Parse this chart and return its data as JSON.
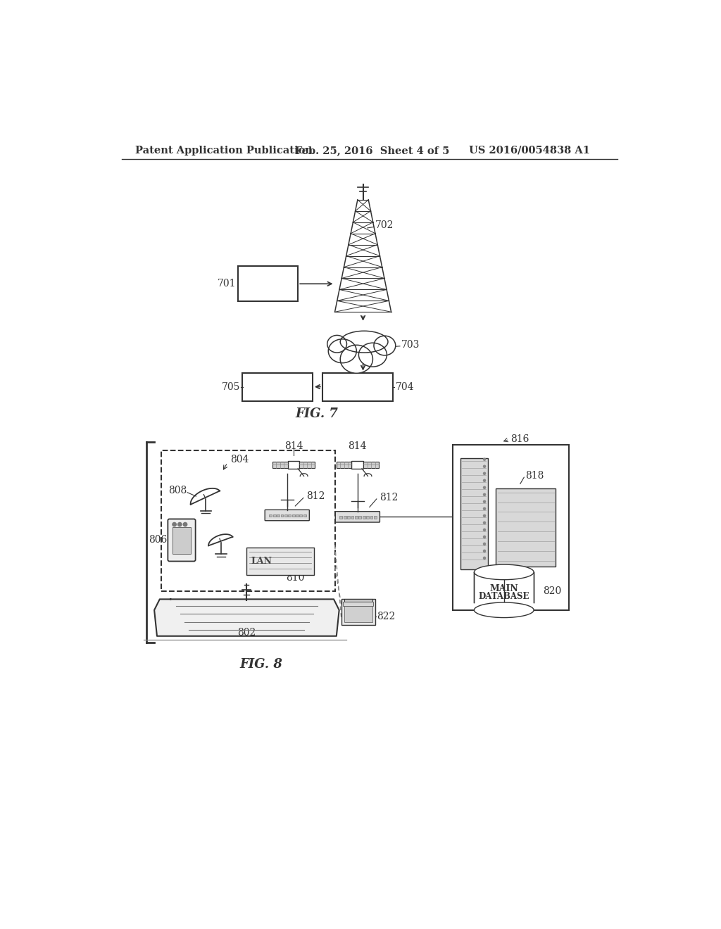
{
  "bg_color": "#ffffff",
  "header_left": "Patent Application Publication",
  "header_center": "Feb. 25, 2016  Sheet 4 of 5",
  "header_right": "US 2016/0054838 A1",
  "fig7_label": "FIG. 7",
  "fig8_label": "FIG. 8",
  "label_color": "#1a1a1a",
  "line_color": "#333333"
}
